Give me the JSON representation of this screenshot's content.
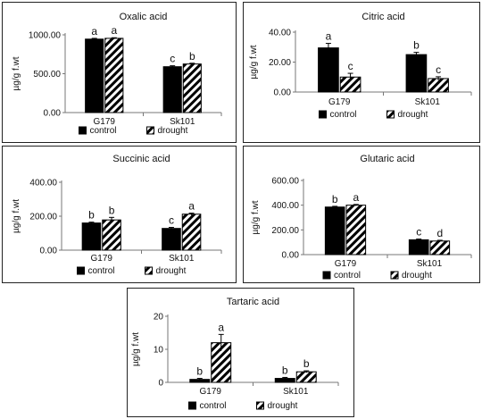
{
  "chart_data": [
    {
      "type": "bar",
      "title": "Oxalic acid",
      "ylabel": "µg/g f.wt",
      "categories": [
        "G179",
        "Sk101"
      ],
      "ylim": [
        0,
        1000
      ],
      "yticks": [
        "0.00",
        "500.00",
        "1000.00"
      ],
      "series": [
        {
          "name": "control",
          "values": [
            945,
            590
          ],
          "errors": [
            10,
            12
          ]
        },
        {
          "name": "drought",
          "values": [
            955,
            625
          ],
          "errors": [
            8,
            10
          ]
        }
      ],
      "letters": [
        [
          "a",
          "a"
        ],
        [
          "c",
          "b"
        ]
      ],
      "legend": "bottom"
    },
    {
      "type": "bar",
      "title": "Citric acid",
      "ylabel": "µg/g f.wt",
      "categories": [
        "G179",
        "Sk101"
      ],
      "ylim": [
        0,
        40
      ],
      "yticks": [
        "0.00",
        "20.00",
        "40.00"
      ],
      "series": [
        {
          "name": "control",
          "values": [
            29.5,
            25
          ],
          "errors": [
            3,
            1.5
          ]
        },
        {
          "name": "drought",
          "values": [
            10,
            9
          ],
          "errors": [
            2.5,
            1.2
          ]
        }
      ],
      "letters": [
        [
          "a",
          "c"
        ],
        [
          "b",
          "c"
        ]
      ],
      "legend": "bottom"
    },
    {
      "type": "bar",
      "title": "Succinic acid",
      "ylabel": "µg/g f.wt",
      "categories": [
        "G179",
        "Sk101"
      ],
      "ylim": [
        0,
        400
      ],
      "yticks": [
        "0.00",
        "200.00",
        "400.00"
      ],
      "series": [
        {
          "name": "control",
          "values": [
            160,
            128
          ],
          "errors": [
            5,
            6
          ]
        },
        {
          "name": "drought",
          "values": [
            178,
            212
          ],
          "errors": [
            15,
            6
          ]
        }
      ],
      "letters": [
        [
          "b",
          "b"
        ],
        [
          "c",
          "a"
        ]
      ],
      "legend": "bottom"
    },
    {
      "type": "bar",
      "title": "Glutaric acid",
      "ylabel": "µg/g f.wt",
      "categories": [
        "G179",
        "Sk101"
      ],
      "ylim": [
        0,
        600
      ],
      "yticks": [
        "0.00",
        "200.00",
        "400.00",
        "600.00"
      ],
      "series": [
        {
          "name": "control",
          "values": [
            385,
            120
          ],
          "errors": [
            6,
            6
          ]
        },
        {
          "name": "drought",
          "values": [
            400,
            110
          ],
          "errors": [
            6,
            6
          ]
        }
      ],
      "letters": [
        [
          "b",
          "a"
        ],
        [
          "c",
          "d"
        ]
      ],
      "legend": "bottom"
    },
    {
      "type": "bar",
      "title": "Tartaric acid",
      "ylabel": "µg/g f.wt",
      "categories": [
        "G179",
        "Sk101"
      ],
      "ylim": [
        0,
        20
      ],
      "yticks": [
        "0",
        "10",
        "20"
      ],
      "series": [
        {
          "name": "control",
          "values": [
            0.9,
            1.2
          ],
          "errors": [
            0.3,
            0.3
          ]
        },
        {
          "name": "drought",
          "values": [
            12,
            3.2
          ],
          "errors": [
            2.5,
            0.3
          ]
        }
      ],
      "letters": [
        [
          "b",
          "a"
        ],
        [
          "b",
          "b"
        ]
      ],
      "legend": "bottom"
    }
  ]
}
